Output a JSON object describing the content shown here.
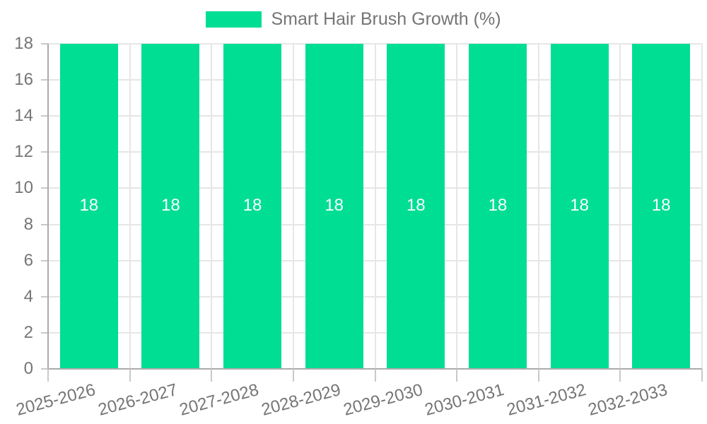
{
  "legend": {
    "label": "Smart Hair Brush Growth (%)",
    "position": "top"
  },
  "chart_data": {
    "type": "bar",
    "title": "",
    "xlabel": "",
    "ylabel": "",
    "categories": [
      "2025-2026",
      "2026-2027",
      "2027-2028",
      "2028-2029",
      "2029-2030",
      "2030-2031",
      "2031-2032",
      "2032-2033"
    ],
    "series": [
      {
        "name": "Smart Hair Brush Growth (%)",
        "color": "#00DE94",
        "values": [
          18,
          18,
          18,
          18,
          18,
          18,
          18,
          18
        ]
      }
    ],
    "bar_value_labels": [
      "18",
      "18",
      "18",
      "18",
      "18",
      "18",
      "18",
      "18"
    ],
    "ylim": [
      0,
      18
    ],
    "yticks": [
      0,
      2,
      4,
      6,
      8,
      10,
      12,
      14,
      16,
      18
    ],
    "grid": true,
    "legend_position": "top",
    "x_label_rotation_deg": -15
  },
  "colors": {
    "bar": "#00DE94",
    "grid_line": "#e6e6e6",
    "axis_line": "#ababab",
    "tick_mark": "#c9c9c9",
    "label_text": "#757575",
    "bar_label_text": "#ffffff",
    "background": "#ffffff"
  }
}
